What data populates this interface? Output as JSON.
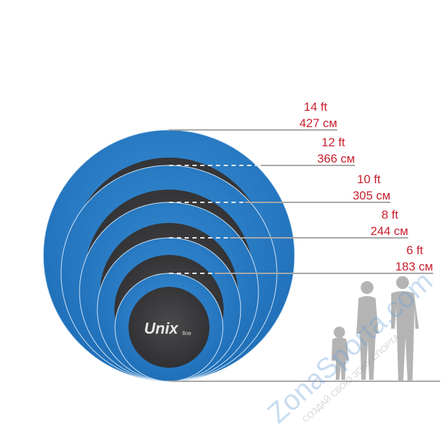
{
  "brand_logo": {
    "name": "Unix",
    "suffix": "line"
  },
  "sizes": [
    {
      "ft": "14 ft",
      "cm": "427 см"
    },
    {
      "ft": "12 ft",
      "cm": "366 см"
    },
    {
      "ft": "10 ft",
      "cm": "305 см"
    },
    {
      "ft": "8 ft",
      "cm": "244 см"
    },
    {
      "ft": "6 ft",
      "cm": "183 см"
    }
  ],
  "watermark": {
    "site": "ZonaSporta.com",
    "slogan": "СОЗДАЙ СВОЮ ЗОНУ СПОРТА"
  },
  "colors": {
    "frame_blue": "#2a7fc8",
    "mat": "#3a3a3c",
    "label_red": "#c8202e",
    "line": "#a8a8a8",
    "silhouette": "#b4b4b4"
  }
}
